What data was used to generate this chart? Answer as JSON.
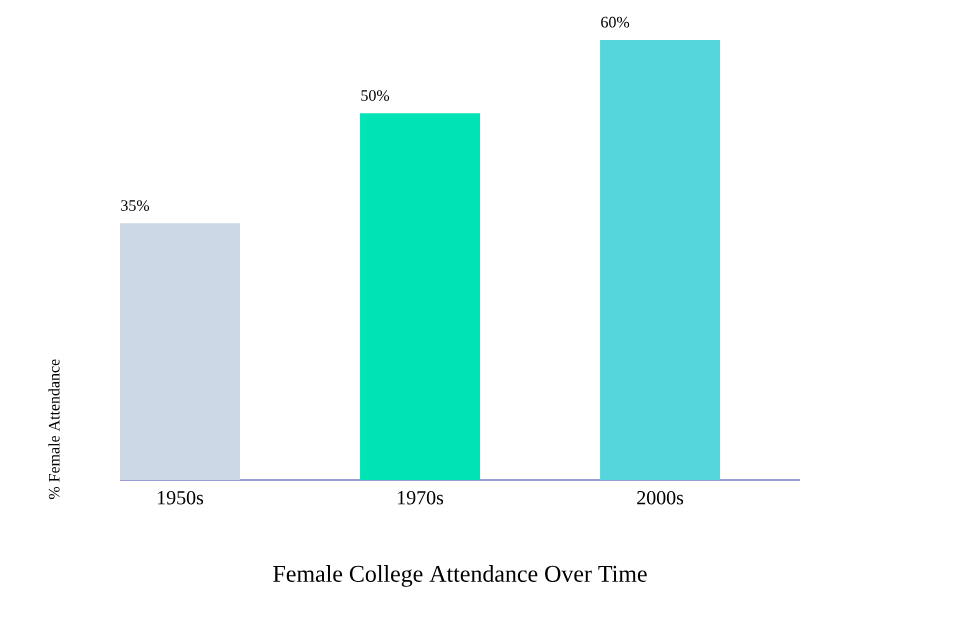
{
  "chart_data": {
    "type": "bar",
    "title": "Female College Attendance Over Time",
    "ylabel": "% Female Attendance",
    "categories": [
      "1950s",
      "1970s",
      "2000s"
    ],
    "values": [
      35,
      50,
      60
    ],
    "colors": [
      "#cbd7e5",
      "#00e3b5",
      "#55d5dc"
    ],
    "value_labels": [
      "35%",
      "50%",
      "60%"
    ]
  }
}
